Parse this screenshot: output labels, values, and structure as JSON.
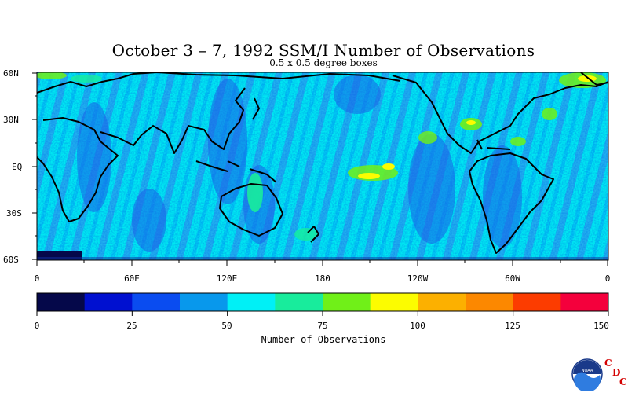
{
  "title": "October 3 – 7, 1992 SSM/I Number of Observations",
  "subtitle": "0.5 x 0.5 degree boxes",
  "lat_labels": [
    "60N",
    "30N",
    "EQ",
    "30S",
    "60S"
  ],
  "lon_labels": [
    "0",
    "60E",
    "120E",
    "180",
    "120W",
    "60W",
    "0"
  ],
  "colorbar": {
    "title": "Number of Observations",
    "tick_labels": [
      "0",
      "25",
      "50",
      "75",
      "100",
      "125",
      "150"
    ],
    "colors": [
      "#05084a",
      "#0010d0",
      "#0a4cf0",
      "#0898ec",
      "#00f0f6",
      "#18ec9c",
      "#70f018",
      "#fcfc00",
      "#fcb000",
      "#fc8800",
      "#fc3c00",
      "#f4003c"
    ],
    "range": [
      0,
      150
    ]
  },
  "logo": {
    "name": "NOAA",
    "letters": [
      "C",
      "D",
      "C"
    ]
  }
}
